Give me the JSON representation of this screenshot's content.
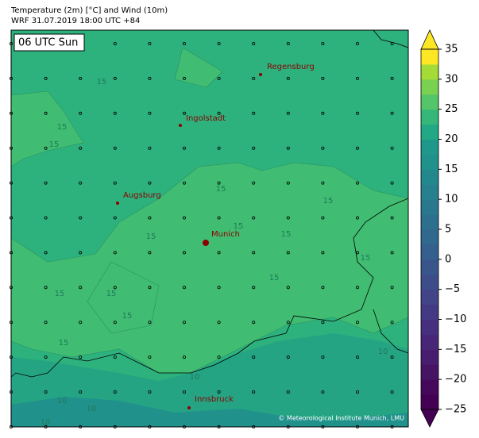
{
  "header": {
    "title": "Temperature (2m) [°C] and Wind (10m)",
    "subtitle": "WRF 31.07.2019 18:00 UTC +84"
  },
  "time_label": "06 UTC Sun",
  "cities": [
    "Regensburg",
    "Ingolstadt",
    "Augsburg",
    "Munich",
    "Innsbruck"
  ],
  "contour_labels": [
    "15",
    "15",
    "15",
    "15",
    "15",
    "15",
    "15",
    "15",
    "15",
    "15",
    "15",
    "15",
    "15",
    "15",
    "10",
    "10",
    "10",
    "10",
    "10"
  ],
  "credit": "© Meteorological Institute Munich, LMU",
  "colorbar": {
    "type": "colorbar",
    "ylim": [
      -25,
      35
    ],
    "yticks": [
      {
        "value": -25,
        "label": "−25"
      },
      {
        "value": -20,
        "label": "−20"
      },
      {
        "value": -15,
        "label": "−15"
      },
      {
        "value": -10,
        "label": "−10"
      },
      {
        "value": -5,
        "label": "−5"
      },
      0,
      5,
      10,
      15,
      20,
      25,
      30,
      35
    ],
    "colors": [
      "#440154",
      "#46085c",
      "#471365",
      "#481d6f",
      "#482677",
      "#46307e",
      "#443983",
      "#414487",
      "#3d4d8a",
      "#39568c",
      "#355f8d",
      "#31688e",
      "#2d708e",
      "#2a788e",
      "#27808e",
      "#23888e",
      "#21918c",
      "#1f988b",
      "#22a884",
      "#35b779",
      "#54c568",
      "#7ad151",
      "#a5db36",
      "#fde725"
    ]
  }
}
